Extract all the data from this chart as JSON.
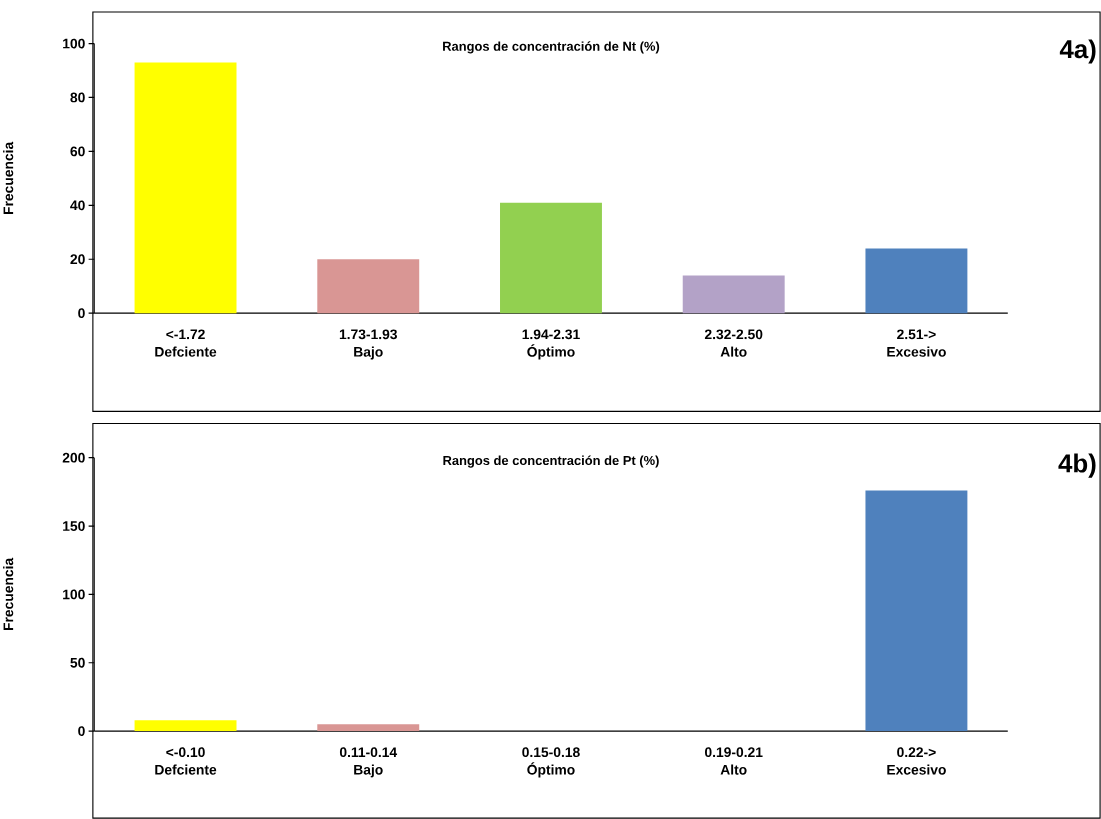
{
  "chart_data": [
    {
      "type": "bar",
      "title": "Rangos de concentración de Nt (%)",
      "ylabel": "Frecuencia",
      "categories": [
        "<-1.72 Defciente",
        "1.73-1.93 Bajo",
        "1.94-2.31 Óptimo",
        "2.32-2.50 Alto",
        "2.51-> Excesivo"
      ],
      "values": [
        93,
        20,
        41,
        14,
        24
      ],
      "colors": [
        "#ffff00",
        "#d99694",
        "#92d050",
        "#b3a2c7",
        "#4f81bd"
      ],
      "ylim": [
        0,
        100
      ],
      "yticks": [
        0,
        20,
        40,
        60,
        80,
        100
      ],
      "annotations": [
        "4a)"
      ]
    },
    {
      "type": "bar",
      "title": "Rangos de concentración de Pt (%)",
      "ylabel": "Frecuencia",
      "categories": [
        "<-0.10 Defciente",
        "0.11-0.14 Bajo",
        "0.15-0.18 Óptimo",
        "0.19-0.21 Alto",
        "0.22-> Excesivo"
      ],
      "values": [
        8,
        5,
        0,
        0,
        176
      ],
      "colors": [
        "#ffff00",
        "#d99694",
        "#92d050",
        "#b3a2c7",
        "#4f81bd"
      ],
      "ylim": [
        0,
        200
      ],
      "yticks": [
        0,
        50,
        100,
        150,
        200
      ],
      "annotations": [
        "4b)"
      ]
    }
  ]
}
